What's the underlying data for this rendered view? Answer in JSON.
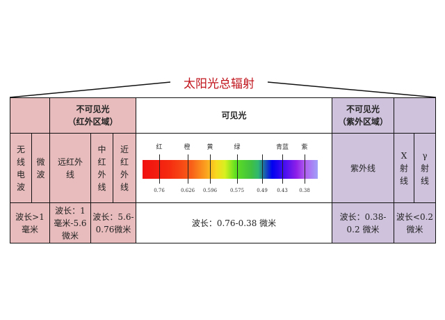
{
  "title": "太阳光总辐射",
  "header": {
    "infrared": "不可见光\n（红外区域）",
    "visible": "可见光",
    "ultraviolet": "不可见光\n（紫外区域）"
  },
  "bands": {
    "radio": "无线电波",
    "microwave": "微波",
    "far_ir": "远红外线",
    "mid_ir": "中红外线",
    "near_ir": "近红外线",
    "uv": "紫外线",
    "xray": "X射线",
    "gamma": "γ射线"
  },
  "wavelengths": {
    "radio": "波长>1毫米",
    "far_ir": "波长：1毫米-5.6微米",
    "mid_near_ir": "波长：5.6-0.76微米",
    "visible": "波长：0.76-0.38 微米",
    "uv": "波长：0.38-0.2 微米",
    "xray_gamma": "波长<0.2 微米"
  },
  "spectrum": {
    "color_labels": [
      "红",
      "橙",
      "黄",
      "绿",
      "青蓝",
      "紫"
    ],
    "ticks": [
      "0.76",
      "0.626",
      "0.596",
      "0.575",
      "0.49",
      "0.43",
      "0.38"
    ]
  },
  "colors": {
    "infrared_bg": "#e8bcbc",
    "ultraviolet_bg": "#cfc2dd",
    "title": "#c0141c"
  }
}
